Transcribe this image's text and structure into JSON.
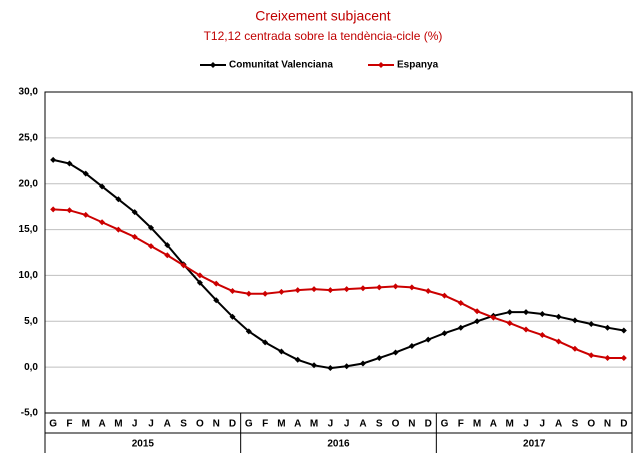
{
  "chart_data": {
    "type": "line",
    "subtitle": "Creixement subjacent",
    "subtitle2": "T12,12 centrada sobre la tendència-cicle (%)",
    "categories": [
      "G",
      "F",
      "M",
      "A",
      "M",
      "J",
      "J",
      "A",
      "S",
      "O",
      "N",
      "D",
      "G",
      "F",
      "M",
      "A",
      "M",
      "J",
      "J",
      "A",
      "S",
      "O",
      "N",
      "D",
      "G",
      "F",
      "M",
      "A",
      "M",
      "J",
      "J",
      "A",
      "S",
      "O",
      "N",
      "D"
    ],
    "x_groups": [
      "2015",
      "2016",
      "2017"
    ],
    "series": [
      {
        "name": "Comunitat Valenciana",
        "color": "#000000",
        "values": [
          22.6,
          22.2,
          21.1,
          19.7,
          18.3,
          16.9,
          15.2,
          13.3,
          11.2,
          9.2,
          7.3,
          5.5,
          3.9,
          2.7,
          1.7,
          0.8,
          0.2,
          -0.1,
          0.1,
          0.4,
          1.0,
          1.6,
          2.3,
          3.0,
          3.7,
          4.3,
          5.0,
          5.6,
          6.0,
          6.0,
          5.8,
          5.5,
          5.1,
          4.7,
          4.3,
          4.0
        ]
      },
      {
        "name": "Espanya",
        "color": "#cc0000",
        "values": [
          17.2,
          17.1,
          16.6,
          15.8,
          15.0,
          14.2,
          13.2,
          12.2,
          11.1,
          10.0,
          9.1,
          8.3,
          8.0,
          8.0,
          8.2,
          8.4,
          8.5,
          8.4,
          8.5,
          8.6,
          8.7,
          8.8,
          8.7,
          8.3,
          7.8,
          7.0,
          6.1,
          5.4,
          4.8,
          4.1,
          3.5,
          2.8,
          2.0,
          1.3,
          1.0,
          1.0
        ]
      }
    ],
    "ylim": [
      -5,
      30
    ],
    "yticks": [
      {
        "value": -5,
        "label": "-5,0"
      },
      {
        "value": 0,
        "label": "0,0"
      },
      {
        "value": 5,
        "label": "5,0"
      },
      {
        "value": 10,
        "label": "10,0"
      },
      {
        "value": 15,
        "label": "15,0"
      },
      {
        "value": 20,
        "label": "20,0"
      },
      {
        "value": 25,
        "label": "25,0"
      },
      {
        "value": 30,
        "label": "30,0"
      }
    ],
    "grid": true
  }
}
